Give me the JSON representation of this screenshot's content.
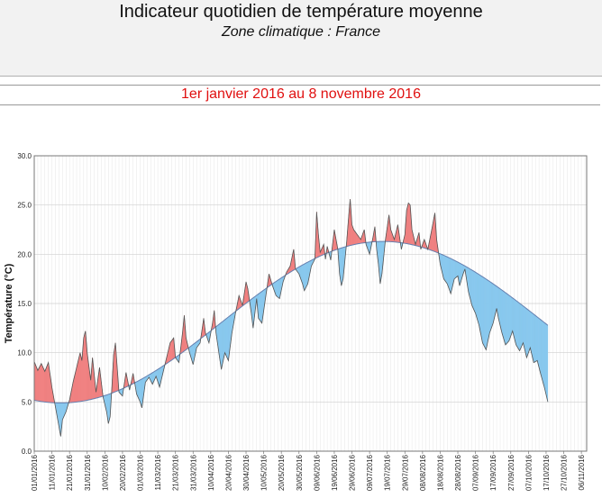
{
  "header": {
    "title": "Indicateur quotidien de température moyenne",
    "subtitle": "Zone climatique : France"
  },
  "period": "1er janvier 2016 au 8 novembre 2016",
  "colors": {
    "above": "#f08080",
    "below": "#88c8ee",
    "normal": "#6680b0",
    "line": "#555555",
    "grid": "#cfcfcf"
  },
  "chart_data": {
    "type": "area",
    "title": "Indicateur quotidien de température moyenne",
    "xlabel": "",
    "ylabel": "Température (°C)",
    "ylim": [
      0,
      30
    ],
    "yticks": [
      "0.0",
      "5.0",
      "10.0",
      "15.0",
      "20.0",
      "25.0",
      "30.0"
    ],
    "xlim_days": [
      0,
      313
    ],
    "xticks": [
      {
        "day": 0,
        "label": "01/01/2016"
      },
      {
        "day": 10,
        "label": "11/01/2016"
      },
      {
        "day": 20,
        "label": "21/01/2016"
      },
      {
        "day": 30,
        "label": "31/01/2016"
      },
      {
        "day": 40,
        "label": "10/02/2016"
      },
      {
        "day": 50,
        "label": "20/02/2016"
      },
      {
        "day": 60,
        "label": "01/03/2016"
      },
      {
        "day": 70,
        "label": "11/03/2016"
      },
      {
        "day": 80,
        "label": "21/03/2016"
      },
      {
        "day": 90,
        "label": "31/03/2016"
      },
      {
        "day": 100,
        "label": "10/04/2016"
      },
      {
        "day": 110,
        "label": "20/04/2016"
      },
      {
        "day": 120,
        "label": "30/04/2016"
      },
      {
        "day": 130,
        "label": "10/05/2016"
      },
      {
        "day": 140,
        "label": "20/05/2016"
      },
      {
        "day": 150,
        "label": "30/05/2016"
      },
      {
        "day": 160,
        "label": "09/06/2016"
      },
      {
        "day": 170,
        "label": "19/06/2016"
      },
      {
        "day": 180,
        "label": "29/06/2016"
      },
      {
        "day": 190,
        "label": "09/07/2016"
      },
      {
        "day": 200,
        "label": "19/07/2016"
      },
      {
        "day": 210,
        "label": "29/07/2016"
      },
      {
        "day": 220,
        "label": "08/08/2016"
      },
      {
        "day": 230,
        "label": "18/08/2016"
      },
      {
        "day": 240,
        "label": "28/08/2016"
      },
      {
        "day": 250,
        "label": "07/09/2016"
      },
      {
        "day": 260,
        "label": "17/09/2016"
      },
      {
        "day": 270,
        "label": "27/09/2016"
      },
      {
        "day": 280,
        "label": "07/10/2016"
      },
      {
        "day": 290,
        "label": "17/10/2016"
      },
      {
        "day": 300,
        "label": "27/10/2016"
      },
      {
        "day": 310,
        "label": "06/11/2016"
      }
    ],
    "normal_min": 4.9,
    "normal_max": 21.3,
    "normal_min_day": 15,
    "observed": [
      [
        0,
        9.1
      ],
      [
        2,
        8.2
      ],
      [
        4,
        8.9
      ],
      [
        6,
        8.1
      ],
      [
        8,
        9.0
      ],
      [
        10,
        6.5
      ],
      [
        12,
        4.5
      ],
      [
        14,
        2.5
      ],
      [
        15,
        1.5
      ],
      [
        16,
        3.2
      ],
      [
        18,
        4.0
      ],
      [
        20,
        5.2
      ],
      [
        22,
        7.0
      ],
      [
        24,
        8.5
      ],
      [
        26,
        10.0
      ],
      [
        27,
        9.2
      ],
      [
        28,
        11.5
      ],
      [
        29,
        12.2
      ],
      [
        30,
        10.0
      ],
      [
        32,
        7.2
      ],
      [
        33,
        9.5
      ],
      [
        35,
        6.0
      ],
      [
        37,
        8.5
      ],
      [
        39,
        5.5
      ],
      [
        41,
        4.0
      ],
      [
        42,
        2.8
      ],
      [
        43,
        3.5
      ],
      [
        44,
        6.5
      ],
      [
        45,
        9.8
      ],
      [
        46,
        11.0
      ],
      [
        47,
        8.5
      ],
      [
        48,
        6.0
      ],
      [
        50,
        5.6
      ],
      [
        52,
        8.0
      ],
      [
        54,
        6.2
      ],
      [
        56,
        7.9
      ],
      [
        58,
        5.8
      ],
      [
        60,
        5.0
      ],
      [
        61,
        4.4
      ],
      [
        63,
        7.0
      ],
      [
        65,
        7.5
      ],
      [
        67,
        6.8
      ],
      [
        69,
        7.6
      ],
      [
        71,
        6.5
      ],
      [
        73,
        8.0
      ],
      [
        75,
        9.5
      ],
      [
        77,
        11.0
      ],
      [
        79,
        11.5
      ],
      [
        80,
        9.5
      ],
      [
        82,
        9.0
      ],
      [
        84,
        12.0
      ],
      [
        85,
        13.8
      ],
      [
        86,
        11.5
      ],
      [
        88,
        10.0
      ],
      [
        90,
        8.8
      ],
      [
        92,
        10.5
      ],
      [
        94,
        11.0
      ],
      [
        96,
        13.5
      ],
      [
        97,
        12.0
      ],
      [
        99,
        11.0
      ],
      [
        101,
        13.0
      ],
      [
        102,
        14.3
      ],
      [
        103,
        12.0
      ],
      [
        105,
        9.5
      ],
      [
        106,
        8.3
      ],
      [
        108,
        10.0
      ],
      [
        110,
        9.2
      ],
      [
        112,
        12.0
      ],
      [
        114,
        14.0
      ],
      [
        116,
        15.8
      ],
      [
        118,
        14.8
      ],
      [
        120,
        17.2
      ],
      [
        121,
        16.5
      ],
      [
        123,
        14.0
      ],
      [
        124,
        12.5
      ],
      [
        126,
        15.5
      ],
      [
        127,
        13.5
      ],
      [
        129,
        13.0
      ],
      [
        131,
        15.5
      ],
      [
        133,
        18.0
      ],
      [
        135,
        16.8
      ],
      [
        137,
        15.8
      ],
      [
        139,
        15.5
      ],
      [
        141,
        17.2
      ],
      [
        143,
        18.2
      ],
      [
        145,
        18.8
      ],
      [
        147,
        20.5
      ],
      [
        148,
        18.5
      ],
      [
        150,
        18.0
      ],
      [
        152,
        17.0
      ],
      [
        153,
        16.3
      ],
      [
        155,
        17.0
      ],
      [
        157,
        18.8
      ],
      [
        159,
        19.5
      ],
      [
        160,
        24.3
      ],
      [
        161,
        22.0
      ],
      [
        162,
        20.2
      ],
      [
        164,
        21.0
      ],
      [
        165,
        19.5
      ],
      [
        166,
        20.8
      ],
      [
        168,
        19.4
      ],
      [
        170,
        22.5
      ],
      [
        172,
        20.5
      ],
      [
        173,
        18.0
      ],
      [
        174,
        16.8
      ],
      [
        175,
        17.5
      ],
      [
        177,
        21.2
      ],
      [
        178,
        23.5
      ],
      [
        179,
        25.6
      ],
      [
        180,
        23.0
      ],
      [
        181,
        22.5
      ],
      [
        183,
        22.0
      ],
      [
        185,
        21.5
      ],
      [
        187,
        22.5
      ],
      [
        188,
        21.0
      ],
      [
        190,
        20.0
      ],
      [
        192,
        21.8
      ],
      [
        193,
        22.8
      ],
      [
        194,
        20.5
      ],
      [
        195,
        19.0
      ],
      [
        196,
        17.0
      ],
      [
        197,
        18.0
      ],
      [
        199,
        21.5
      ],
      [
        201,
        24.0
      ],
      [
        202,
        22.5
      ],
      [
        204,
        21.5
      ],
      [
        206,
        23.0
      ],
      [
        208,
        20.5
      ],
      [
        210,
        22.0
      ],
      [
        211,
        24.5
      ],
      [
        212,
        25.2
      ],
      [
        213,
        25.0
      ],
      [
        214,
        22.5
      ],
      [
        216,
        21.0
      ],
      [
        218,
        22.2
      ],
      [
        219,
        20.5
      ],
      [
        221,
        21.5
      ],
      [
        223,
        20.5
      ],
      [
        225,
        22.3
      ],
      [
        227,
        24.2
      ],
      [
        228,
        21.5
      ],
      [
        230,
        19.0
      ],
      [
        232,
        17.5
      ],
      [
        234,
        17.0
      ],
      [
        236,
        16.0
      ],
      [
        238,
        17.5
      ],
      [
        240,
        17.8
      ],
      [
        241,
        16.8
      ],
      [
        243,
        18.0
      ],
      [
        244,
        18.5
      ],
      [
        246,
        16.2
      ],
      [
        248,
        14.8
      ],
      [
        250,
        14.0
      ],
      [
        252,
        12.8
      ],
      [
        254,
        11.0
      ],
      [
        256,
        10.3
      ],
      [
        258,
        12.0
      ],
      [
        260,
        13.0
      ],
      [
        262,
        14.5
      ],
      [
        263,
        13.5
      ],
      [
        265,
        12.0
      ],
      [
        267,
        10.8
      ],
      [
        269,
        11.2
      ],
      [
        271,
        12.2
      ],
      [
        273,
        10.8
      ],
      [
        275,
        10.2
      ],
      [
        277,
        11.0
      ],
      [
        279,
        9.5
      ],
      [
        281,
        10.5
      ],
      [
        283,
        9.0
      ],
      [
        285,
        9.2
      ],
      [
        287,
        7.8
      ],
      [
        289,
        6.5
      ],
      [
        291,
        5.0
      ]
    ]
  }
}
